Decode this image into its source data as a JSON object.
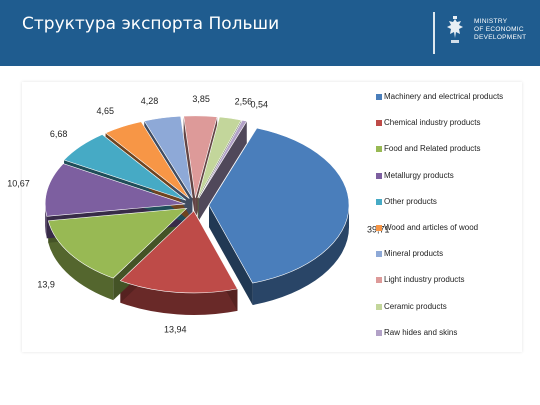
{
  "header": {
    "title": "Структура экспорта Польши",
    "ministry_lines": [
      "MINISTRY",
      "OF ECONOMIC",
      "DEVELOPMENT"
    ]
  },
  "icons": {
    "logo": "polish-eagle-emblem"
  },
  "chart_data": {
    "type": "pie",
    "title": "",
    "categories": [
      "Machinery and electrical products",
      "Chemical industry products",
      "Food and Related products",
      "Metallurgy products",
      "Other products",
      "Wood and articles of wood",
      "Mineral products",
      "Light industry products",
      "Ceramic products",
      "Raw hides and skins"
    ],
    "values": [
      39.71,
      13.94,
      13.9,
      10.67,
      6.68,
      4.65,
      4.28,
      3.85,
      2.56,
      0.54
    ],
    "data_labels": [
      "39,71",
      "13,94",
      "13,9",
      "10,67",
      "6,68",
      "4,65",
      "4,28",
      "3,85",
      "2,56",
      "0,54"
    ],
    "colors": [
      "#4a7ebb",
      "#be4b48",
      "#98b954",
      "#7d5fa0",
      "#46aac5",
      "#f79646",
      "#8ea9d7",
      "#dd9a99",
      "#c3d69b",
      "#b2a1c7"
    ],
    "legend_position": "right",
    "exploded": true,
    "three_d": true
  }
}
